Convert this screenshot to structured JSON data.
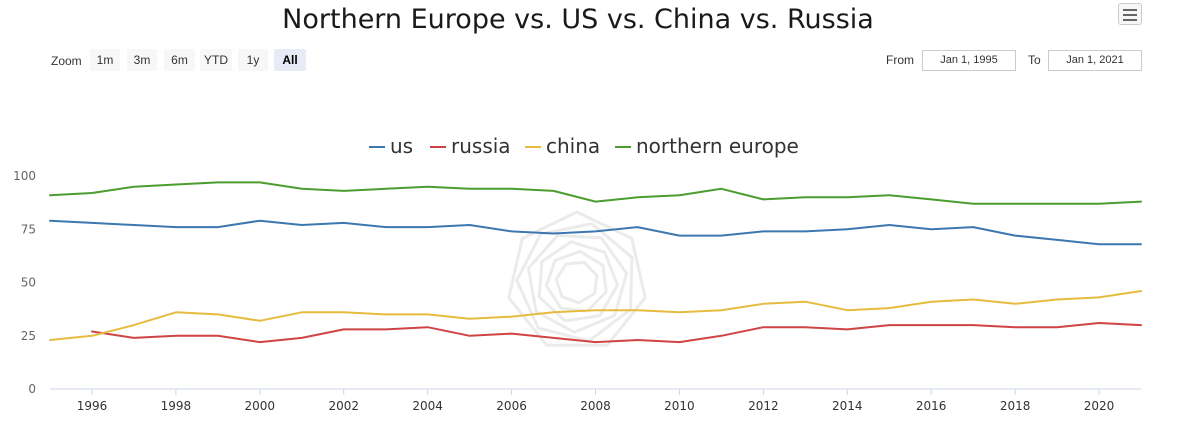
{
  "title": "Northern Europe vs. US vs. China vs. Russia",
  "toolbar": {
    "zoom_label": "Zoom",
    "zoom_buttons": [
      "1m",
      "3m",
      "6m",
      "YTD",
      "1y",
      "All"
    ],
    "active_zoom": "All",
    "from_label": "From",
    "from_value": "Jan 1, 1995",
    "to_label": "To",
    "to_value": "Jan 1, 2021"
  },
  "menu_icon": "hamburger-menu-icon",
  "chart_data": {
    "type": "line",
    "xlabel": "",
    "ylabel": "",
    "xlim": [
      1995,
      2021
    ],
    "ylim": [
      0,
      100
    ],
    "yticks": [
      0,
      25,
      50,
      75,
      100
    ],
    "xticks": [
      1996,
      1998,
      2000,
      2002,
      2004,
      2006,
      2008,
      2010,
      2012,
      2014,
      2016,
      2018,
      2020
    ],
    "grid": false,
    "legend_position": "top-center",
    "series": [
      {
        "name": "us",
        "color": "#3d77b0",
        "x": [
          1995,
          1996,
          1997,
          1998,
          1999,
          2000,
          2001,
          2002,
          2003,
          2004,
          2005,
          2006,
          2007,
          2008,
          2009,
          2010,
          2011,
          2012,
          2013,
          2014,
          2015,
          2016,
          2017,
          2018,
          2019,
          2020,
          2021
        ],
        "values": [
          79,
          78,
          77,
          76,
          76,
          79,
          77,
          78,
          76,
          76,
          77,
          74,
          73,
          74,
          76,
          72,
          72,
          74,
          74,
          75,
          77,
          75,
          76,
          72,
          70,
          68,
          68
        ]
      },
      {
        "name": "russia",
        "color": "#cf4444",
        "x": [
          1996,
          1997,
          1998,
          1999,
          2000,
          2001,
          2002,
          2003,
          2004,
          2005,
          2006,
          2007,
          2008,
          2009,
          2010,
          2011,
          2012,
          2013,
          2014,
          2015,
          2016,
          2017,
          2018,
          2019,
          2020,
          2021
        ],
        "values": [
          27,
          24,
          25,
          25,
          22,
          24,
          28,
          28,
          29,
          25,
          26,
          24,
          22,
          23,
          22,
          25,
          29,
          29,
          28,
          30,
          30,
          30,
          29,
          29,
          31,
          30
        ]
      },
      {
        "name": "china",
        "color": "#e5bc3f",
        "x": [
          1995,
          1996,
          1997,
          1998,
          1999,
          2000,
          2001,
          2002,
          2003,
          2004,
          2005,
          2006,
          2007,
          2008,
          2009,
          2010,
          2011,
          2012,
          2013,
          2014,
          2015,
          2016,
          2017,
          2018,
          2019,
          2020,
          2021
        ],
        "values": [
          23,
          25,
          30,
          36,
          35,
          32,
          36,
          36,
          35,
          35,
          33,
          34,
          36,
          37,
          37,
          36,
          37,
          40,
          41,
          37,
          38,
          41,
          42,
          40,
          42,
          43,
          46
        ]
      },
      {
        "name": "northern europe",
        "color": "#4a9d2e",
        "x": [
          1995,
          1996,
          1997,
          1998,
          1999,
          2000,
          2001,
          2002,
          2003,
          2004,
          2005,
          2006,
          2007,
          2008,
          2009,
          2010,
          2011,
          2012,
          2013,
          2014,
          2015,
          2016,
          2017,
          2018,
          2019,
          2020,
          2021
        ],
        "values": [
          91,
          92,
          95,
          96,
          97,
          97,
          94,
          93,
          94,
          95,
          94,
          94,
          93,
          88,
          90,
          91,
          94,
          89,
          90,
          90,
          91,
          89,
          87,
          87,
          87,
          87,
          88
        ]
      }
    ]
  }
}
